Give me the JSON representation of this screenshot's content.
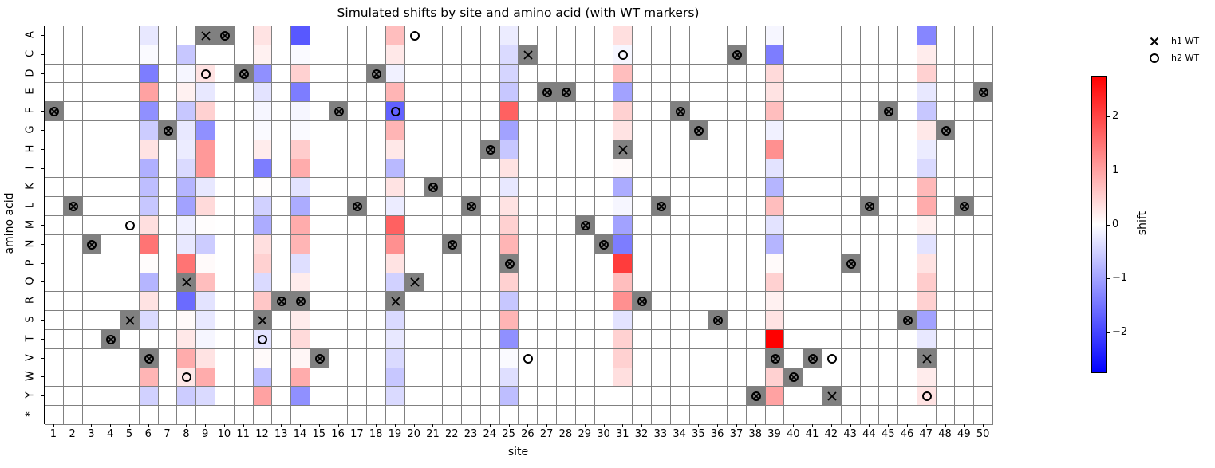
{
  "chart_data": {
    "type": "heatmap",
    "title": "Simulated shifts by site and amino acid (with WT markers)",
    "xlabel": "site",
    "ylabel": "amino acid",
    "x": [
      1,
      2,
      3,
      4,
      5,
      6,
      7,
      8,
      9,
      10,
      11,
      12,
      13,
      14,
      15,
      16,
      17,
      18,
      19,
      20,
      21,
      22,
      23,
      24,
      25,
      26,
      27,
      28,
      29,
      30,
      31,
      32,
      33,
      34,
      35,
      36,
      37,
      38,
      39,
      40,
      41,
      42,
      43,
      44,
      45,
      46,
      47,
      48,
      49,
      50
    ],
    "y": [
      "A",
      "C",
      "D",
      "E",
      "F",
      "G",
      "H",
      "I",
      "K",
      "L",
      "M",
      "N",
      "P",
      "Q",
      "R",
      "S",
      "T",
      "V",
      "W",
      "Y",
      "*"
    ],
    "colorbar": {
      "label": "shift",
      "range": [
        -2.75,
        2.75
      ],
      "ticks": [
        -2,
        -1,
        0,
        1,
        2
      ],
      "tick_labels": [
        "−2",
        "−1",
        "0",
        "1",
        "2"
      ],
      "colormap": "bwr"
    },
    "nonzero_columns": {
      "6": [
        -0.25,
        -0.05,
        -1.4,
        1.0,
        -1.2,
        -0.55,
        0.3,
        -0.85,
        -0.7,
        -0.6,
        0.35,
        1.5,
        0.03,
        -0.8,
        0.3,
        -0.4,
        0,
        0,
        0.8,
        -0.5,
        0
      ],
      "8": [
        0,
        -0.6,
        -0.1,
        0.15,
        -0.6,
        -0.25,
        -0.2,
        -0.4,
        -0.8,
        -1.0,
        -0.15,
        -0.25,
        1.5,
        0,
        -1.6,
        0.05,
        0.25,
        0.9,
        0.25,
        -0.55,
        0
      ],
      "9": [
        0,
        0,
        0.3,
        -0.25,
        0.5,
        -1.2,
        1.1,
        1.1,
        -0.25,
        0.4,
        0.02,
        -0.55,
        0.05,
        0.7,
        -0.3,
        -0.25,
        -0.1,
        0.3,
        0.9,
        -0.4,
        0
      ],
      "12": [
        0.3,
        0.15,
        -1.2,
        -0.3,
        -0.1,
        -0.05,
        0.2,
        -1.4,
        0.02,
        -0.5,
        -0.9,
        0.35,
        0.5,
        -0.4,
        0.6,
        0,
        -0.3,
        0.05,
        -0.7,
        1.0,
        0
      ],
      "14": [
        -1.8,
        -0.05,
        0.5,
        -1.4,
        -0.1,
        -0.05,
        0.55,
        0.9,
        -0.3,
        -0.9,
        0.9,
        0.8,
        -0.35,
        0.2,
        0,
        0.2,
        0.4,
        0.1,
        0.9,
        -1.2,
        0
      ],
      "19": [
        0.7,
        0.25,
        -0.15,
        0.8,
        -1.7,
        0.8,
        0.25,
        -0.75,
        0.3,
        -0.2,
        1.7,
        1.2,
        0.3,
        -0.5,
        0,
        -0.4,
        -0.25,
        -0.4,
        -0.6,
        -0.4,
        0
      ],
      "25": [
        -0.2,
        -0.4,
        -0.45,
        -0.6,
        1.7,
        -1.0,
        -0.6,
        0.3,
        -0.25,
        0.3,
        0.5,
        0.8,
        0,
        0.5,
        -0.6,
        0.8,
        -1.2,
        -0.05,
        -0.35,
        -0.7,
        0
      ],
      "31": [
        0.35,
        -0.1,
        0.7,
        -1.0,
        0.5,
        0.3,
        0,
        0.05,
        -0.9,
        -0.1,
        -1.0,
        -1.4,
        2.1,
        0.7,
        1.2,
        -0.3,
        0.5,
        0.5,
        0.35,
        0,
        0
      ],
      "39": [
        -0.1,
        -1.4,
        0.4,
        0.3,
        0.7,
        -0.15,
        1.2,
        -0.3,
        -0.8,
        0.7,
        -0.3,
        -0.8,
        0.05,
        0.5,
        0.15,
        0.3,
        2.75,
        0,
        0.5,
        1.0,
        0
      ],
      "47": [
        -1.3,
        0.2,
        0.5,
        -0.25,
        -0.6,
        0.25,
        -0.2,
        -0.4,
        0.75,
        0.9,
        0.15,
        -0.3,
        0.3,
        0.55,
        0.5,
        -1.0,
        -0.25,
        0,
        0.2,
        0.3,
        0
      ]
    },
    "markers": [
      {
        "site": 9,
        "aa": "A",
        "type": "h1"
      },
      {
        "site": 10,
        "aa": "A",
        "type": "both"
      },
      {
        "site": 20,
        "aa": "A",
        "type": "h2"
      },
      {
        "site": 26,
        "aa": "C",
        "type": "h1"
      },
      {
        "site": 31,
        "aa": "C",
        "type": "h2"
      },
      {
        "site": 37,
        "aa": "C",
        "type": "both"
      },
      {
        "site": 9,
        "aa": "D",
        "type": "h2"
      },
      {
        "site": 11,
        "aa": "D",
        "type": "both"
      },
      {
        "site": 18,
        "aa": "D",
        "type": "both"
      },
      {
        "site": 27,
        "aa": "E",
        "type": "both"
      },
      {
        "site": 28,
        "aa": "E",
        "type": "both"
      },
      {
        "site": 50,
        "aa": "E",
        "type": "both"
      },
      {
        "site": 1,
        "aa": "F",
        "type": "both"
      },
      {
        "site": 16,
        "aa": "F",
        "type": "both"
      },
      {
        "site": 19,
        "aa": "F",
        "type": "h2"
      },
      {
        "site": 34,
        "aa": "F",
        "type": "both"
      },
      {
        "site": 45,
        "aa": "F",
        "type": "both"
      },
      {
        "site": 7,
        "aa": "G",
        "type": "both"
      },
      {
        "site": 35,
        "aa": "G",
        "type": "both"
      },
      {
        "site": 48,
        "aa": "G",
        "type": "both"
      },
      {
        "site": 24,
        "aa": "H",
        "type": "both"
      },
      {
        "site": 31,
        "aa": "H",
        "type": "h1"
      },
      {
        "site": 21,
        "aa": "K",
        "type": "both"
      },
      {
        "site": 2,
        "aa": "L",
        "type": "both"
      },
      {
        "site": 17,
        "aa": "L",
        "type": "both"
      },
      {
        "site": 23,
        "aa": "L",
        "type": "both"
      },
      {
        "site": 33,
        "aa": "L",
        "type": "both"
      },
      {
        "site": 44,
        "aa": "L",
        "type": "both"
      },
      {
        "site": 49,
        "aa": "L",
        "type": "both"
      },
      {
        "site": 5,
        "aa": "M",
        "type": "h2"
      },
      {
        "site": 29,
        "aa": "M",
        "type": "both"
      },
      {
        "site": 3,
        "aa": "N",
        "type": "both"
      },
      {
        "site": 22,
        "aa": "N",
        "type": "both"
      },
      {
        "site": 30,
        "aa": "N",
        "type": "both"
      },
      {
        "site": 25,
        "aa": "P",
        "type": "both"
      },
      {
        "site": 43,
        "aa": "P",
        "type": "both"
      },
      {
        "site": 8,
        "aa": "Q",
        "type": "h1"
      },
      {
        "site": 20,
        "aa": "Q",
        "type": "h1"
      },
      {
        "site": 13,
        "aa": "R",
        "type": "both"
      },
      {
        "site": 14,
        "aa": "R",
        "type": "both"
      },
      {
        "site": 19,
        "aa": "R",
        "type": "h1"
      },
      {
        "site": 32,
        "aa": "R",
        "type": "both"
      },
      {
        "site": 5,
        "aa": "S",
        "type": "h1"
      },
      {
        "site": 12,
        "aa": "S",
        "type": "h1"
      },
      {
        "site": 36,
        "aa": "S",
        "type": "both"
      },
      {
        "site": 46,
        "aa": "S",
        "type": "both"
      },
      {
        "site": 4,
        "aa": "T",
        "type": "both"
      },
      {
        "site": 12,
        "aa": "T",
        "type": "h2"
      },
      {
        "site": 6,
        "aa": "V",
        "type": "both"
      },
      {
        "site": 15,
        "aa": "V",
        "type": "both"
      },
      {
        "site": 26,
        "aa": "V",
        "type": "h2"
      },
      {
        "site": 39,
        "aa": "V",
        "type": "both"
      },
      {
        "site": 41,
        "aa": "V",
        "type": "both"
      },
      {
        "site": 42,
        "aa": "V",
        "type": "h2"
      },
      {
        "site": 47,
        "aa": "V",
        "type": "h1"
      },
      {
        "site": 8,
        "aa": "W",
        "type": "h2"
      },
      {
        "site": 40,
        "aa": "W",
        "type": "both"
      },
      {
        "site": 38,
        "aa": "Y",
        "type": "both"
      },
      {
        "site": 42,
        "aa": "Y",
        "type": "h1"
      },
      {
        "site": 47,
        "aa": "Y",
        "type": "h2"
      }
    ],
    "legend": [
      {
        "symbol": "x",
        "label": "h1 WT"
      },
      {
        "symbol": "o",
        "label": "h2 WT"
      }
    ],
    "legend_position": "upper right outside",
    "grid": true
  }
}
